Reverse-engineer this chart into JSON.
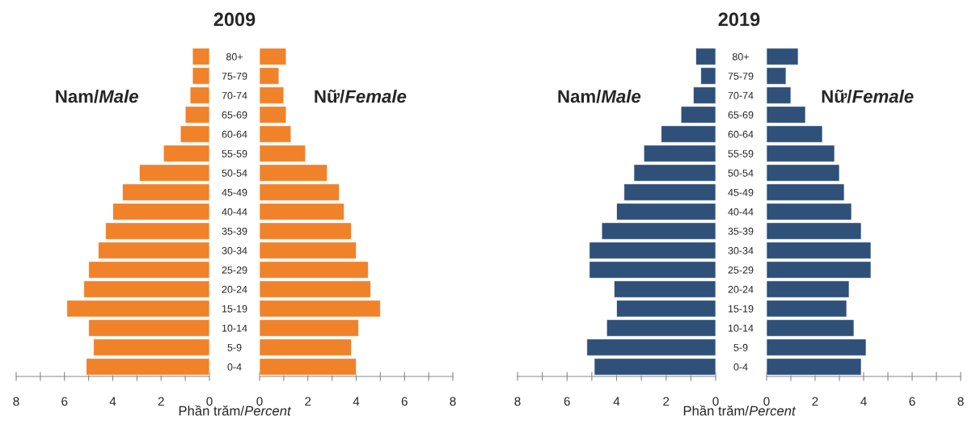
{
  "chart_data": [
    {
      "type": "bar",
      "orientation": "horizontal",
      "title": "2009",
      "xlabel": "Phần trăm/Percent",
      "categories": [
        "80+",
        "75-79",
        "70-74",
        "65-69",
        "60-64",
        "55-59",
        "50-54",
        "45-49",
        "40-44",
        "35-39",
        "30-34",
        "25-29",
        "20-24",
        "15-19",
        "10-14",
        "5-9",
        "0-4"
      ],
      "series": [
        {
          "name": "Nam/Male",
          "color": "#f0822a",
          "values": [
            0.7,
            0.7,
            0.8,
            1.0,
            1.2,
            1.9,
            2.9,
            3.6,
            4.0,
            4.3,
            4.6,
            5.0,
            5.2,
            5.9,
            5.0,
            4.8,
            5.1
          ]
        }
      ],
      "xlim": [
        8,
        0
      ],
      "xticks": [
        8,
        {
          "value": 7,
          "label": null
        },
        6,
        {
          "value": 5,
          "label": null
        },
        4,
        {
          "value": 3,
          "label": null
        },
        2,
        {
          "value": 1,
          "label": null
        },
        0
      ]
    },
    {
      "type": "bar",
      "orientation": "horizontal",
      "categories": [
        null,
        null,
        null,
        null,
        null,
        null,
        null,
        null,
        null,
        null,
        null,
        null,
        null,
        null,
        null,
        null,
        null
      ],
      "series": [
        {
          "name": "Nữ/Female",
          "color": "#f0822a",
          "values": [
            1.1,
            0.8,
            1.0,
            1.1,
            1.3,
            1.9,
            2.8,
            3.3,
            3.5,
            3.8,
            4.0,
            4.5,
            4.6,
            5.0,
            4.1,
            3.8,
            4.0
          ]
        }
      ],
      "xlim": [
        0,
        8
      ],
      "xticks": [
        0,
        {
          "value": 1,
          "label": null
        },
        2,
        {
          "value": 3,
          "label": null
        },
        4,
        {
          "value": 5,
          "label": null
        },
        6,
        {
          "value": 7,
          "label": null
        },
        8
      ],
      "tick_labels": "x"
    },
    {
      "type": "bar",
      "orientation": "horizontal",
      "title": "2019",
      "xlabel": "Phần trăm/Percent",
      "categories": [
        "80+",
        "75-79",
        "70-74",
        "65-69",
        "60-64",
        "55-59",
        "50-54",
        "45-49",
        "40-44",
        "35-39",
        "30-34",
        "25-29",
        "20-24",
        "15-19",
        "10-14",
        "5-9",
        "0-4"
      ],
      "series": [
        {
          "name": "Nam/Male",
          "color": "#2e5079",
          "values": [
            0.8,
            0.6,
            0.9,
            1.4,
            2.2,
            2.9,
            3.3,
            3.7,
            4.0,
            4.6,
            5.1,
            5.1,
            4.1,
            4.0,
            4.4,
            5.2,
            4.9
          ]
        }
      ],
      "xlim": [
        8,
        0
      ],
      "xticks": [
        8,
        {
          "value": 7,
          "label": null
        },
        6,
        {
          "value": 5,
          "label": null
        },
        4,
        {
          "value": 3,
          "label": null
        },
        2,
        {
          "value": 1,
          "label": null
        },
        0
      ]
    },
    {
      "type": "bar",
      "orientation": "horizontal",
      "categories": [
        null,
        null,
        null,
        null,
        null,
        null,
        null,
        null,
        null,
        null,
        null,
        null,
        null,
        null,
        null,
        null,
        null
      ],
      "series": [
        {
          "name": "Nữ/Female",
          "color": "#2e5079",
          "values": [
            1.3,
            0.8,
            1.0,
            1.6,
            2.3,
            2.8,
            3.0,
            3.2,
            3.5,
            3.9,
            4.3,
            4.3,
            3.4,
            3.3,
            3.6,
            4.1,
            3.9
          ]
        }
      ],
      "xlim": [
        0,
        8
      ],
      "xticks": [
        0,
        {
          "value": 1,
          "label": null
        },
        2,
        {
          "value": 3,
          "label": null
        },
        4,
        {
          "value": 5,
          "label": null
        },
        6,
        {
          "value": 7,
          "label": null
        },
        8
      ],
      "tick_labels": "x"
    }
  ]
}
